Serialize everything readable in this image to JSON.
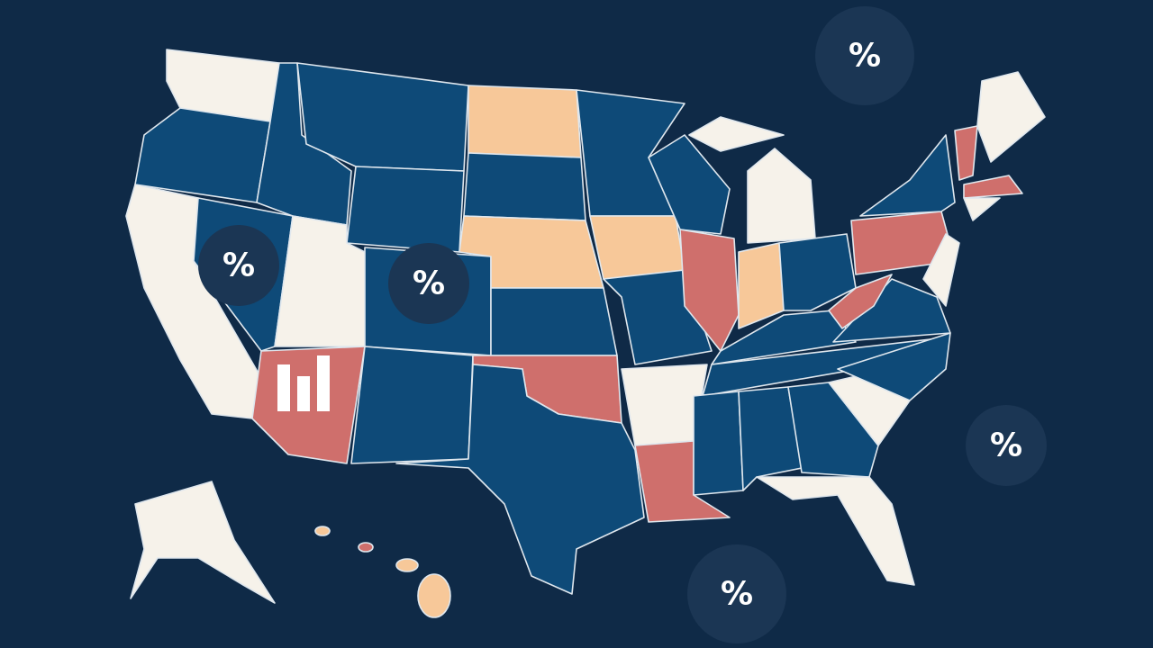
{
  "badges": [
    "%",
    "%",
    "%",
    "%",
    "%"
  ]
}
